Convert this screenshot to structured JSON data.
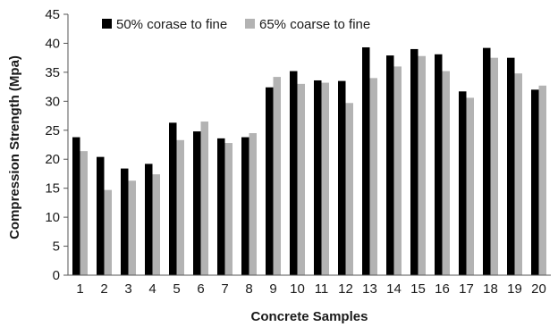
{
  "chart_data": {
    "type": "bar",
    "title": "",
    "xlabel": "Concrete Samples",
    "ylabel": "Compression Strength (Mpa)",
    "ylim": [
      0,
      45
    ],
    "yticks": [
      "0",
      "5",
      "10",
      "15",
      "20",
      "25",
      "30",
      "35",
      "40",
      "45"
    ],
    "categories": [
      "1",
      "2",
      "3",
      "4",
      "5",
      "6",
      "7",
      "8",
      "9",
      "10",
      "11",
      "12",
      "13",
      "14",
      "15",
      "16",
      "17",
      "18",
      "19",
      "20"
    ],
    "series": [
      {
        "name": "50% corase to fine",
        "color": "#000000",
        "values": [
          23.8,
          20.4,
          18.4,
          19.2,
          26.3,
          24.8,
          23.6,
          23.8,
          32.4,
          35.2,
          33.6,
          33.5,
          39.3,
          37.9,
          39.0,
          38.1,
          31.7,
          39.2,
          37.5,
          32.0
        ]
      },
      {
        "name": "65% coarse to fine",
        "color": "#b3b3b3",
        "values": [
          21.4,
          14.7,
          16.3,
          17.4,
          23.3,
          26.5,
          22.8,
          24.5,
          34.2,
          33.0,
          33.2,
          29.7,
          34.0,
          36.0,
          37.8,
          35.2,
          30.6,
          37.5,
          34.8,
          32.7
        ]
      }
    ],
    "grid": false,
    "legend": "top-left"
  }
}
